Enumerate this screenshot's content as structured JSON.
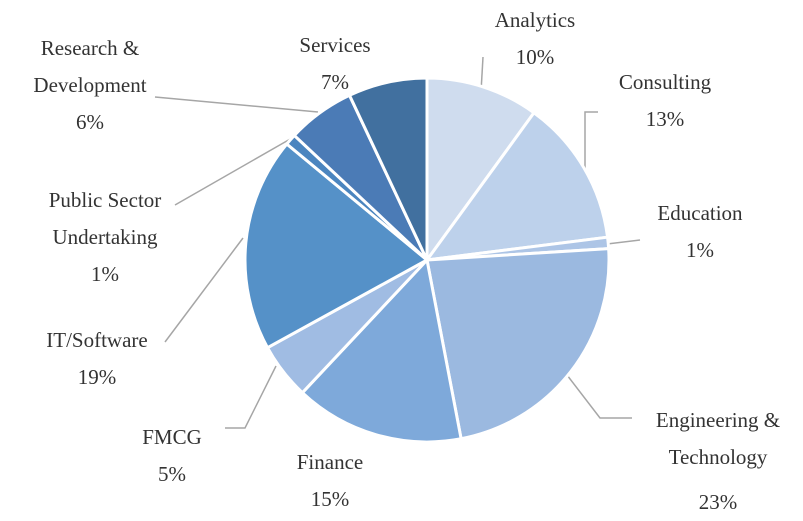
{
  "chart_data": {
    "type": "pie",
    "categories": [
      "Analytics",
      "Consulting",
      "Education",
      "Engineering & Technology",
      "Finance",
      "FMCG",
      "IT/Software",
      "Public Sector Undertaking",
      "Research & Development",
      "Services"
    ],
    "values": [
      10,
      13,
      1,
      23,
      15,
      5,
      19,
      1,
      6,
      7
    ],
    "value_labels": [
      "10%",
      "13%",
      "1%",
      "23%",
      "15%",
      "5%",
      "19%",
      "1%",
      "6%",
      "7%"
    ],
    "colors": [
      "#cfdcee",
      "#bdd1eb",
      "#adc5e6",
      "#9bb9e0",
      "#7ea9da",
      "#a0bce3",
      "#5591c8",
      "#4b85bf",
      "#4b7bb6",
      "#41709f"
    ]
  }
}
